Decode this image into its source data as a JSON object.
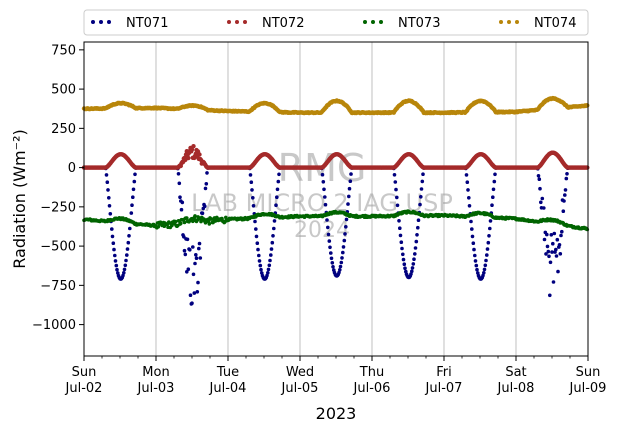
{
  "chart_data": {
    "type": "scatter",
    "title": "",
    "xlabel": "2023",
    "ylabel": "Radiation (Wm⁻²)",
    "ylim": [
      -1200,
      800
    ],
    "yticks": [
      750,
      500,
      250,
      0,
      -250,
      -500,
      -750,
      -1000
    ],
    "ytick_labels": [
      "750",
      "500",
      "250",
      "0",
      "−250",
      "−500",
      "−750",
      "−1000"
    ],
    "xlim": [
      "2023-07-02",
      "2023-07-09"
    ],
    "xticks": [
      {
        "day": "Sun",
        "date": "Jul-02"
      },
      {
        "day": "Mon",
        "date": "Jul-03"
      },
      {
        "day": "Tue",
        "date": "Jul-04"
      },
      {
        "day": "Wed",
        "date": "Jul-05"
      },
      {
        "day": "Thu",
        "date": "Jul-06"
      },
      {
        "day": "Fri",
        "date": "Jul-07"
      },
      {
        "day": "Sat",
        "date": "Jul-08"
      },
      {
        "day": "Sun",
        "date": "Jul-09"
      }
    ],
    "grid": "vertical",
    "legend_position": "top",
    "series": [
      {
        "name": "NT071",
        "color": "#00007f",
        "daily_min": [
          -710,
          -820,
          -710,
          -690,
          -700,
          -710,
          -770
        ]
      },
      {
        "name": "NT072",
        "color": "#a52a2a",
        "daily_max": [
          85,
          110,
          85,
          85,
          85,
          85,
          95
        ]
      },
      {
        "name": "NT073",
        "color": "#006400",
        "daily_level": [
          -330,
          -370,
          -330,
          -310,
          -310,
          -305,
          -325,
          -390
        ]
      },
      {
        "name": "NT074",
        "color": "#b8860b",
        "daily_level": [
          375,
          380,
          360,
          350,
          350,
          350,
          355,
          395
        ],
        "daily_max": [
          410,
          395,
          410,
          425,
          425,
          425,
          440
        ]
      }
    ]
  },
  "watermark": {
    "line1": "RMG",
    "line2": "LAB MICRO 2 IAG USP",
    "line3": "2024"
  }
}
